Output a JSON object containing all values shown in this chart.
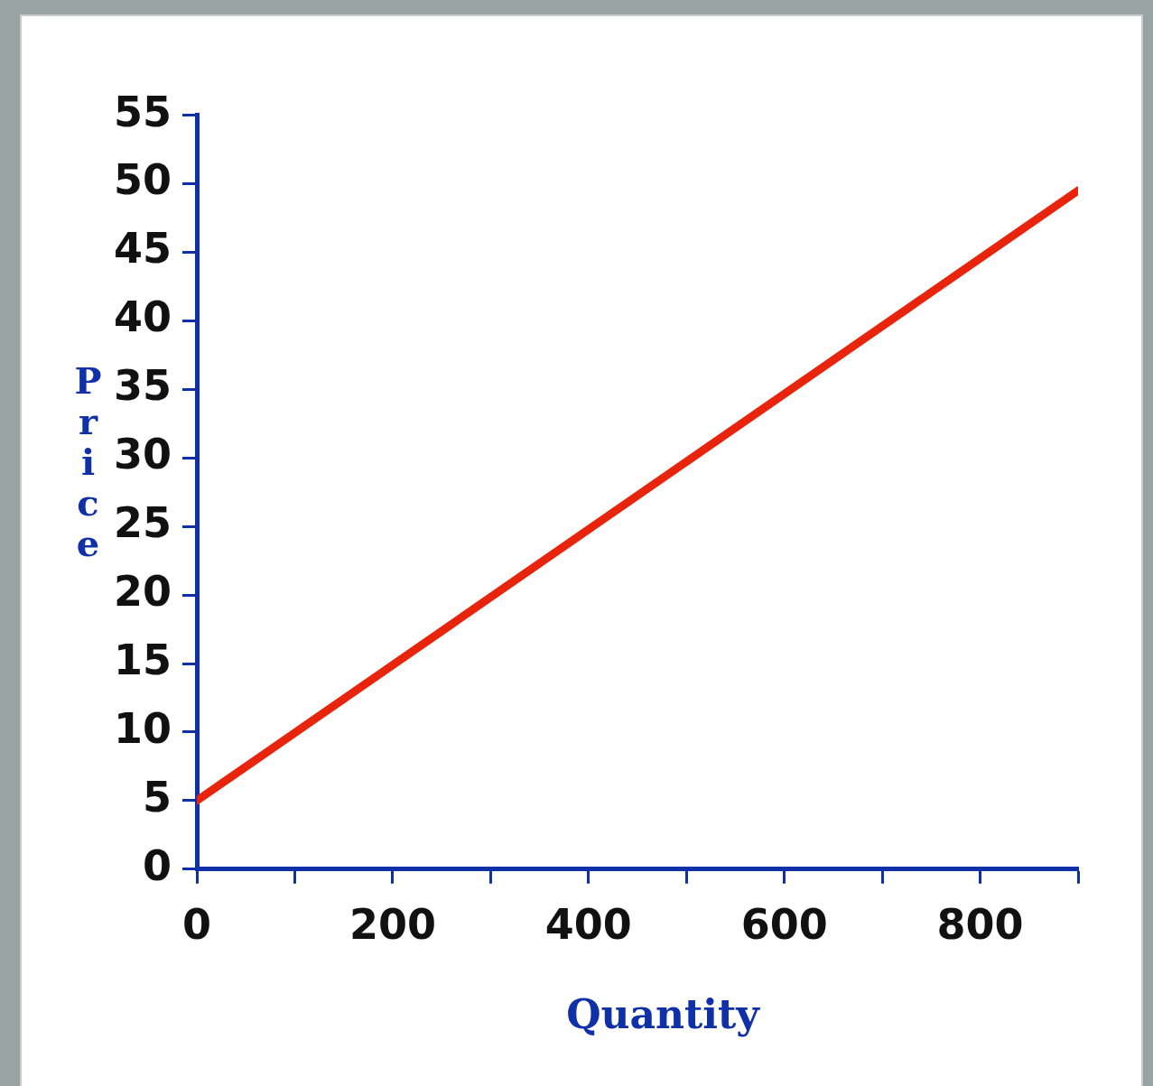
{
  "chart_data": {
    "type": "line",
    "xlabel": "Quantity",
    "ylabel": "Price",
    "x": [
      0,
      900
    ],
    "series": [
      {
        "color": "#e8250c",
        "values": [
          5,
          49.5
        ]
      }
    ],
    "xlim": [
      0,
      900
    ],
    "xticks": [
      0,
      {
        "value": 100,
        "label": null
      },
      200,
      {
        "value": 300,
        "label": null
      },
      400,
      {
        "value": 500,
        "label": null
      },
      600,
      {
        "value": 700,
        "label": null
      },
      800,
      {
        "value": 900,
        "label": null
      }
    ],
    "ylim": [
      0,
      55
    ],
    "yticks": [
      0,
      5,
      10,
      15,
      20,
      25,
      30,
      35,
      40,
      45,
      50,
      55
    ],
    "grid": false,
    "legend": false,
    "marker": "none",
    "line_style": "solid"
  }
}
